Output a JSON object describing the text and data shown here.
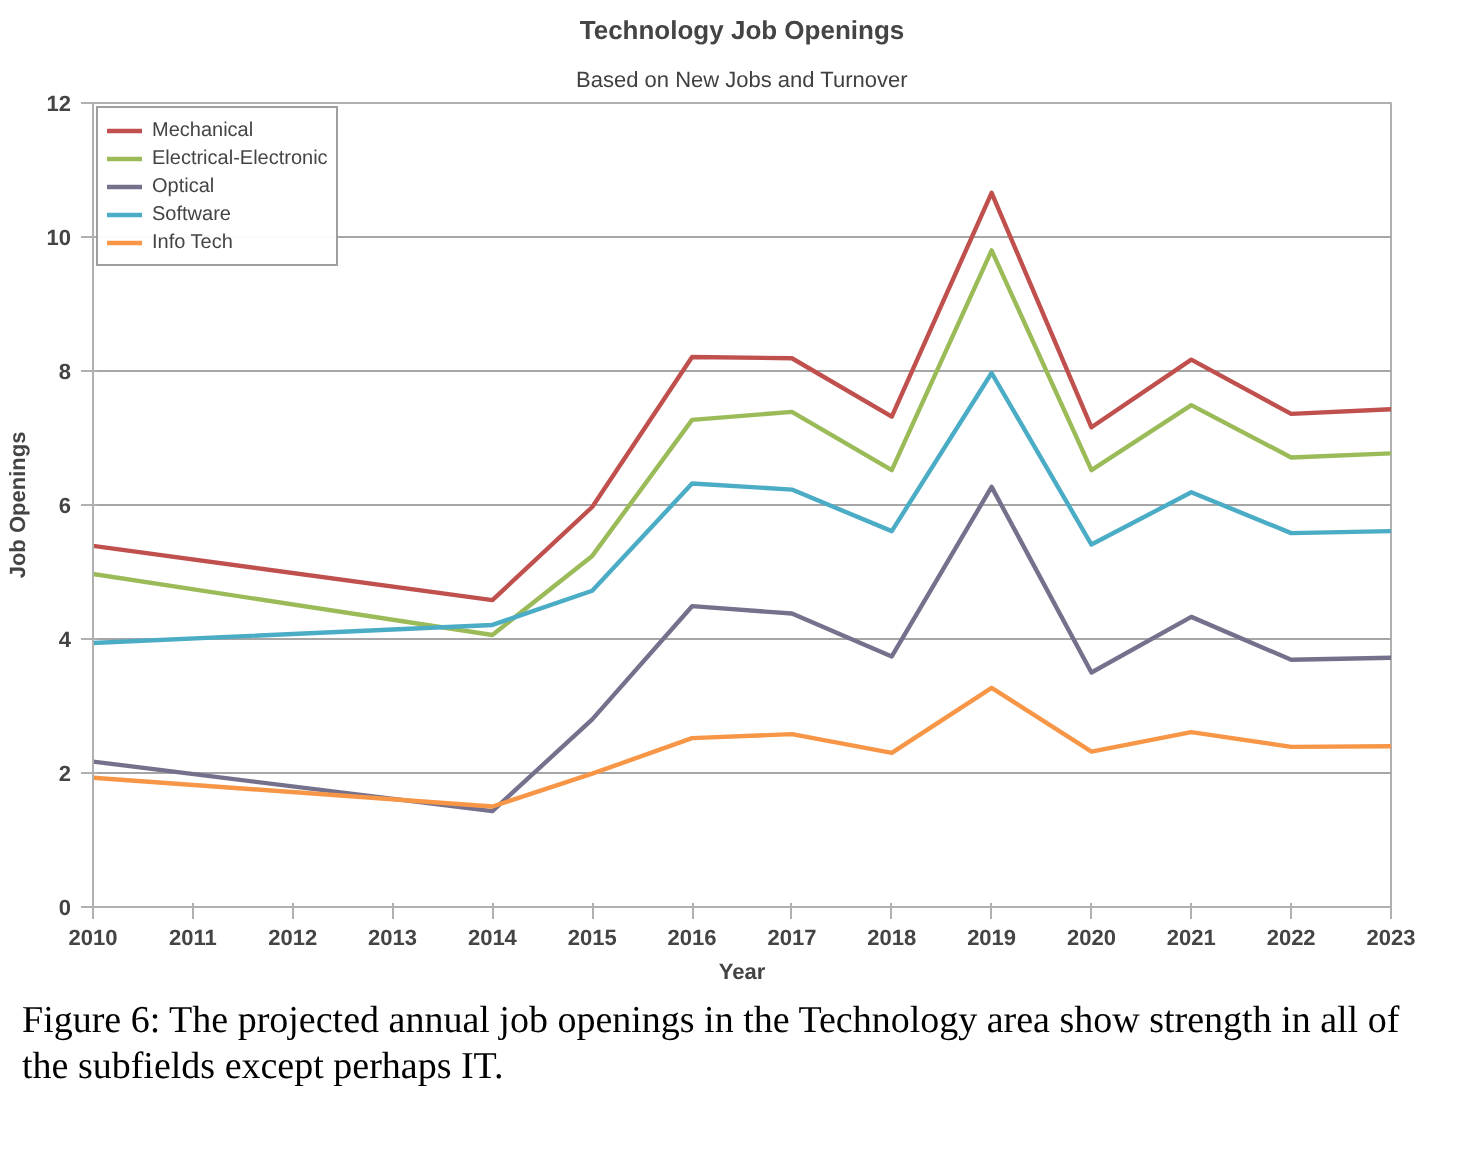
{
  "chart_data": {
    "type": "line",
    "title": "Technology Job Openings",
    "subtitle": "Based on New Jobs and Turnover",
    "xlabel": "Year",
    "ylabel": "Job Openings",
    "x": [
      2010,
      2014,
      2015,
      2016,
      2017,
      2018,
      2019,
      2020,
      2021,
      2022,
      2023
    ],
    "xlim": [
      2010,
      2023
    ],
    "xticks": [
      2010,
      2011,
      2012,
      2013,
      2014,
      2015,
      2016,
      2017,
      2018,
      2019,
      2020,
      2021,
      2022,
      2023
    ],
    "ylim": [
      0,
      12
    ],
    "yticks": [
      0,
      2,
      4,
      6,
      8,
      10,
      12
    ],
    "grid": "y",
    "legend": "top left",
    "marker": "none",
    "line_style": "solid",
    "series": [
      {
        "name": "Mechanical",
        "color": "#c0504d",
        "values": [
          5.39,
          4.58,
          5.97,
          8.21,
          8.19,
          7.32,
          10.66,
          7.16,
          8.17,
          7.36,
          7.43
        ]
      },
      {
        "name": "Electrical-Electronic",
        "color": "#9bbb59",
        "values": [
          4.97,
          4.06,
          5.24,
          7.27,
          7.39,
          6.52,
          9.8,
          6.52,
          7.49,
          6.71,
          6.77
        ]
      },
      {
        "name": "Optical",
        "color": "#75718c",
        "values": [
          2.17,
          1.43,
          2.8,
          4.49,
          4.38,
          3.74,
          6.27,
          3.5,
          4.33,
          3.69,
          3.72
        ]
      },
      {
        "name": "Software",
        "color": "#4bacc6",
        "values": [
          3.94,
          4.21,
          4.72,
          6.32,
          6.23,
          5.61,
          7.97,
          5.41,
          6.19,
          5.58,
          5.61
        ]
      },
      {
        "name": "Info Tech",
        "color": "#f79646",
        "values": [
          1.93,
          1.5,
          1.99,
          2.52,
          2.58,
          2.3,
          3.27,
          2.32,
          2.61,
          2.39,
          2.4
        ]
      }
    ],
    "annotations": [
      "Figure 6: The projected annual job openings in the Technology area show strength in all of the subfields except perhaps IT."
    ]
  }
}
